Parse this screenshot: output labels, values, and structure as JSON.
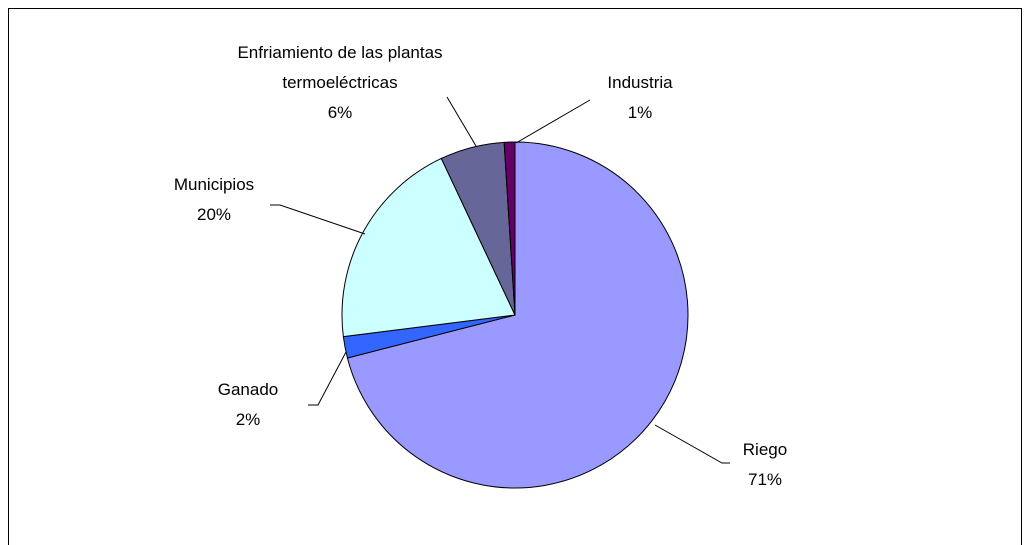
{
  "chart_data": {
    "type": "pie",
    "categories": [
      "Riego",
      "Ganado",
      "Municipios",
      "Enfriamiento de las plantas termoeléctricas",
      "Industria"
    ],
    "values": [
      71,
      2,
      20,
      6,
      1
    ],
    "value_labels": [
      "71%",
      "2%",
      "20%",
      "6%",
      "1%"
    ],
    "colors": [
      "#9999ff",
      "#3366ff",
      "#ccffff",
      "#666699",
      "#660066"
    ]
  }
}
